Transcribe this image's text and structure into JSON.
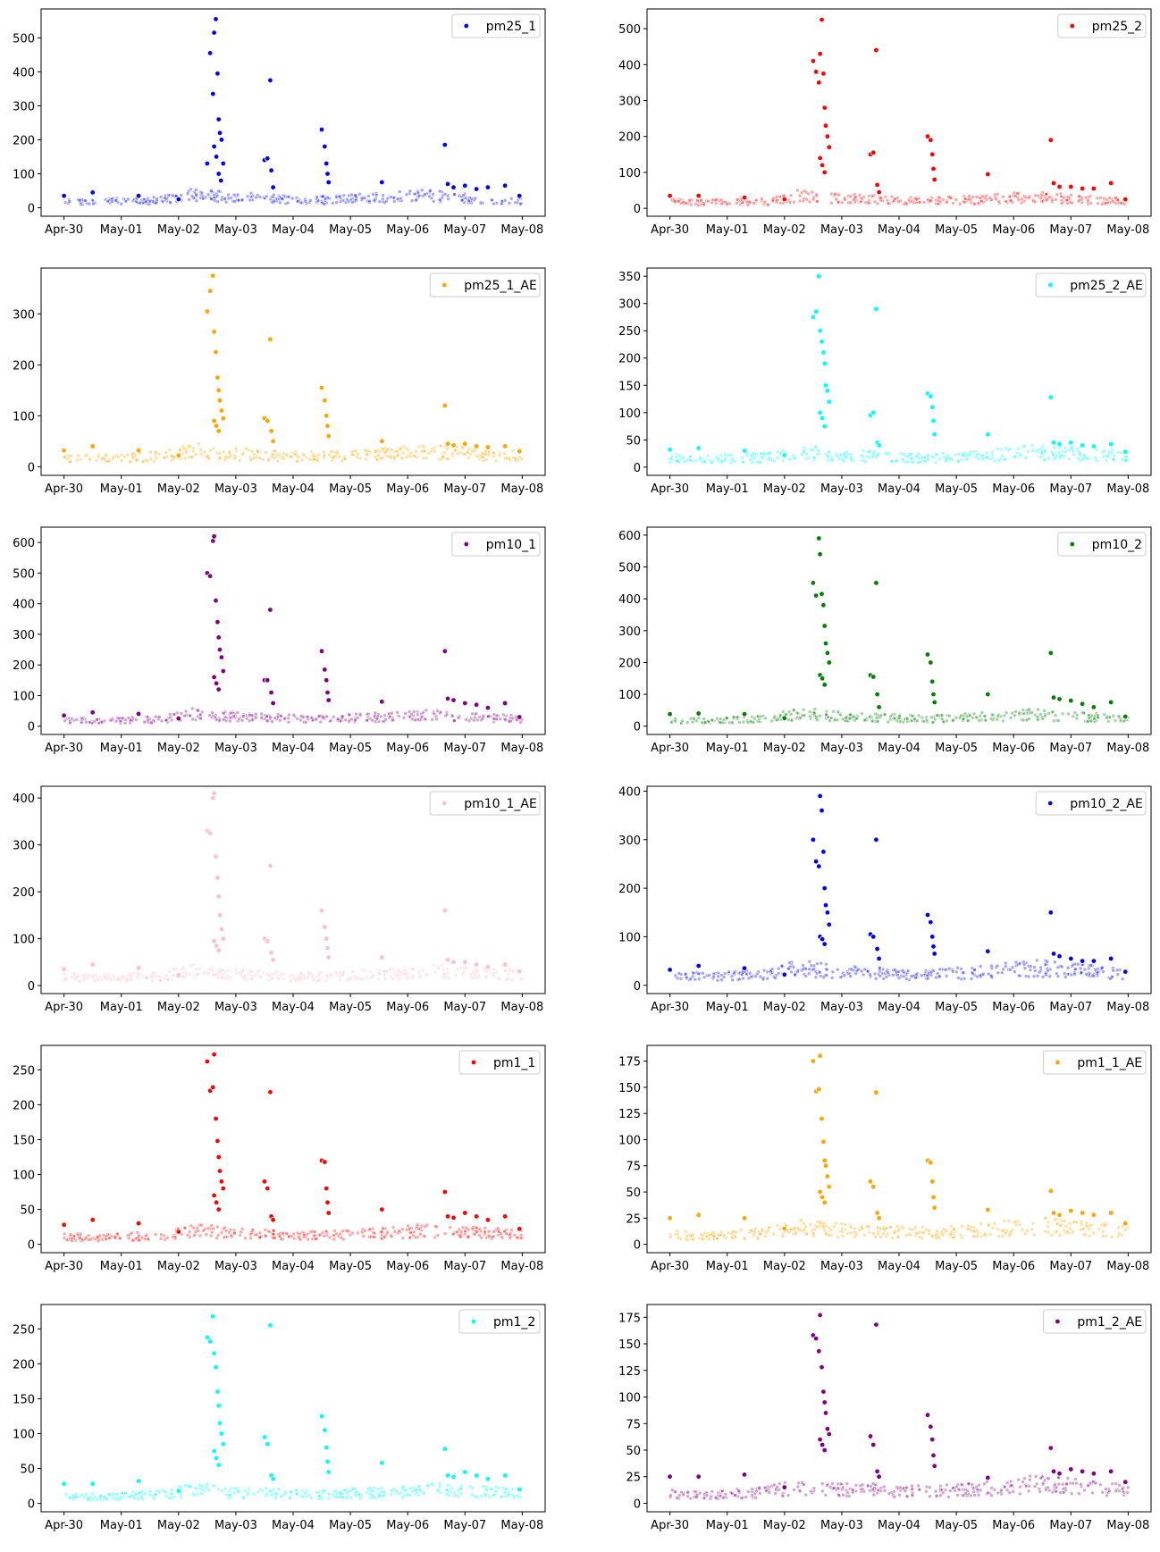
{
  "x_tick_labels": [
    "Apr-30",
    "May-01",
    "May-02",
    "May-03",
    "May-04",
    "May-05",
    "May-06",
    "May-07",
    "May-08"
  ],
  "chart_data": [
    {
      "type": "scatter",
      "legend": "pm25_1",
      "color": "#0000ff",
      "legend_position": "top-right",
      "xlim": [
        -0.4,
        8.4
      ],
      "ylim": [
        -25,
        585
      ],
      "yticks": [
        0,
        100,
        200,
        300,
        400,
        500
      ],
      "x": [
        0.0,
        0.5,
        1.3,
        2.0,
        2.5,
        2.55,
        2.6,
        2.62,
        2.65,
        2.68,
        2.7,
        2.72,
        2.75,
        2.78,
        2.62,
        2.66,
        2.7,
        2.74,
        3.5,
        3.55,
        3.6,
        3.62,
        3.65,
        4.5,
        4.55,
        4.58,
        4.6,
        4.62,
        5.55,
        6.65,
        6.7,
        6.8,
        7.0,
        7.2,
        7.4,
        7.7,
        7.95
      ],
      "y": [
        35,
        45,
        35,
        25,
        130,
        455,
        335,
        515,
        555,
        395,
        260,
        220,
        200,
        130,
        180,
        150,
        100,
        80,
        140,
        145,
        375,
        110,
        60,
        230,
        180,
        130,
        100,
        75,
        75,
        185,
        70,
        60,
        65,
        55,
        60,
        65,
        35
      ],
      "base": [
        20,
        20,
        22,
        25,
        45,
        35,
        30,
        25,
        25,
        30,
        35,
        40,
        32,
        25,
        22
      ]
    },
    {
      "type": "scatter",
      "legend": "pm25_2",
      "color": "#ff0000",
      "legend_position": "top-right",
      "xlim": [
        -0.4,
        8.4
      ],
      "ylim": [
        -22,
        555
      ],
      "yticks": [
        0,
        100,
        200,
        300,
        400,
        500
      ],
      "x": [
        0.0,
        0.5,
        1.3,
        2.0,
        2.5,
        2.55,
        2.6,
        2.62,
        2.65,
        2.68,
        2.7,
        2.72,
        2.75,
        2.78,
        2.62,
        2.66,
        2.7,
        3.5,
        3.55,
        3.6,
        3.62,
        3.65,
        4.5,
        4.55,
        4.58,
        4.6,
        4.62,
        5.55,
        6.65,
        6.7,
        6.8,
        7.0,
        7.2,
        7.4,
        7.7,
        7.95
      ],
      "y": [
        35,
        35,
        30,
        25,
        410,
        380,
        350,
        430,
        525,
        375,
        280,
        230,
        200,
        170,
        140,
        120,
        100,
        150,
        155,
        440,
        65,
        45,
        200,
        190,
        150,
        110,
        80,
        95,
        190,
        70,
        60,
        60,
        55,
        55,
        70,
        25
      ],
      "base": [
        20,
        18,
        20,
        22,
        40,
        30,
        28,
        25,
        22,
        25,
        30,
        35,
        30,
        25,
        22
      ]
    },
    {
      "type": "scatter",
      "legend": "pm25_1_AE",
      "color": "#ffa500",
      "legend_position": "top-right",
      "xlim": [
        -0.4,
        8.4
      ],
      "ylim": [
        -17,
        390
      ],
      "yticks": [
        0,
        100,
        200,
        300
      ],
      "x": [
        0.0,
        0.5,
        1.3,
        2.0,
        2.5,
        2.55,
        2.6,
        2.62,
        2.65,
        2.68,
        2.7,
        2.72,
        2.75,
        2.78,
        2.62,
        2.66,
        2.7,
        3.5,
        3.55,
        3.6,
        3.62,
        3.65,
        4.5,
        4.55,
        4.58,
        4.6,
        4.62,
        5.55,
        6.65,
        6.7,
        6.8,
        7.0,
        7.2,
        7.4,
        7.7,
        7.95
      ],
      "y": [
        32,
        40,
        32,
        22,
        305,
        345,
        375,
        265,
        225,
        175,
        150,
        130,
        110,
        95,
        90,
        80,
        70,
        95,
        90,
        250,
        70,
        50,
        155,
        130,
        100,
        80,
        60,
        50,
        120,
        45,
        42,
        45,
        40,
        38,
        40,
        30
      ],
      "base": [
        18,
        18,
        20,
        22,
        35,
        28,
        25,
        22,
        22,
        25,
        28,
        32,
        30,
        25,
        22
      ]
    },
    {
      "type": "scatter",
      "legend": "pm25_2_AE",
      "color": "#00ffff",
      "legend_position": "top-right",
      "xlim": [
        -0.4,
        8.4
      ],
      "ylim": [
        -15,
        365
      ],
      "yticks": [
        0,
        50,
        100,
        150,
        200,
        250,
        300,
        350
      ],
      "x": [
        0.0,
        0.5,
        1.3,
        2.0,
        2.5,
        2.55,
        2.6,
        2.62,
        2.65,
        2.68,
        2.7,
        2.72,
        2.75,
        2.78,
        2.62,
        2.66,
        2.7,
        3.5,
        3.55,
        3.6,
        3.62,
        3.65,
        4.5,
        4.55,
        4.58,
        4.6,
        4.62,
        5.55,
        6.65,
        6.7,
        6.8,
        7.0,
        7.2,
        7.4,
        7.7,
        7.95
      ],
      "y": [
        32,
        35,
        30,
        22,
        275,
        285,
        350,
        250,
        230,
        210,
        190,
        150,
        140,
        120,
        100,
        90,
        75,
        95,
        100,
        290,
        45,
        40,
        135,
        130,
        110,
        85,
        60,
        60,
        128,
        45,
        42,
        45,
        40,
        38,
        42,
        28
      ],
      "base": [
        18,
        16,
        18,
        20,
        32,
        25,
        22,
        20,
        18,
        20,
        25,
        30,
        28,
        25,
        22
      ]
    },
    {
      "type": "scatter",
      "legend": "pm10_1",
      "color": "#800080",
      "legend_position": "top-right",
      "xlim": [
        -0.4,
        8.4
      ],
      "ylim": [
        -27,
        650
      ],
      "yticks": [
        0,
        100,
        200,
        300,
        400,
        500,
        600
      ],
      "x": [
        0.0,
        0.5,
        1.3,
        2.0,
        2.5,
        2.55,
        2.6,
        2.62,
        2.65,
        2.68,
        2.7,
        2.72,
        2.75,
        2.78,
        2.62,
        2.66,
        2.7,
        3.5,
        3.55,
        3.6,
        3.62,
        3.65,
        4.5,
        4.55,
        4.58,
        4.6,
        4.62,
        5.55,
        6.65,
        6.7,
        6.8,
        7.0,
        7.2,
        7.4,
        7.7,
        7.95
      ],
      "y": [
        35,
        45,
        40,
        25,
        500,
        490,
        605,
        620,
        410,
        340,
        290,
        250,
        225,
        180,
        160,
        140,
        120,
        150,
        150,
        380,
        110,
        75,
        245,
        185,
        150,
        110,
        85,
        80,
        245,
        90,
        85,
        75,
        70,
        60,
        75,
        30
      ],
      "base": [
        22,
        20,
        22,
        25,
        45,
        35,
        30,
        28,
        25,
        30,
        35,
        40,
        35,
        30,
        25
      ]
    },
    {
      "type": "scatter",
      "legend": "pm10_2",
      "color": "#008000",
      "legend_position": "top-right",
      "xlim": [
        -0.4,
        8.4
      ],
      "ylim": [
        -26,
        625
      ],
      "yticks": [
        0,
        100,
        200,
        300,
        400,
        500,
        600
      ],
      "x": [
        0.0,
        0.5,
        1.3,
        2.0,
        2.5,
        2.55,
        2.6,
        2.62,
        2.65,
        2.68,
        2.7,
        2.72,
        2.75,
        2.78,
        2.62,
        2.66,
        2.7,
        3.5,
        3.55,
        3.6,
        3.62,
        3.65,
        4.5,
        4.55,
        4.58,
        4.6,
        4.62,
        5.55,
        6.65,
        6.7,
        6.8,
        7.0,
        7.2,
        7.4,
        7.7,
        7.95
      ],
      "y": [
        38,
        40,
        38,
        25,
        450,
        410,
        590,
        540,
        415,
        380,
        315,
        260,
        230,
        200,
        160,
        150,
        130,
        160,
        155,
        450,
        100,
        60,
        225,
        200,
        140,
        100,
        75,
        100,
        230,
        90,
        85,
        80,
        70,
        60,
        75,
        30
      ],
      "base": [
        22,
        20,
        22,
        25,
        45,
        35,
        30,
        28,
        25,
        30,
        35,
        40,
        35,
        30,
        25
      ]
    },
    {
      "type": "scatter",
      "legend": "pm10_1_AE",
      "color": "#ffc0cb",
      "legend_position": "top-right",
      "xlim": [
        -0.4,
        8.4
      ],
      "ylim": [
        -17,
        425
      ],
      "yticks": [
        0,
        100,
        200,
        300,
        400
      ],
      "x": [
        0.0,
        0.5,
        1.3,
        2.0,
        2.5,
        2.55,
        2.6,
        2.62,
        2.65,
        2.68,
        2.7,
        2.72,
        2.75,
        2.78,
        2.62,
        2.66,
        2.7,
        3.5,
        3.55,
        3.6,
        3.62,
        3.65,
        4.5,
        4.55,
        4.58,
        4.6,
        4.62,
        5.55,
        6.65,
        6.7,
        6.8,
        7.0,
        7.2,
        7.4,
        7.7,
        7.95
      ],
      "y": [
        35,
        45,
        38,
        22,
        330,
        325,
        400,
        410,
        275,
        230,
        190,
        150,
        120,
        100,
        95,
        85,
        75,
        100,
        95,
        255,
        70,
        55,
        160,
        125,
        100,
        80,
        60,
        60,
        160,
        55,
        50,
        50,
        45,
        40,
        45,
        30
      ],
      "base": [
        20,
        18,
        20,
        22,
        35,
        28,
        25,
        22,
        22,
        25,
        28,
        35,
        32,
        28,
        25
      ]
    },
    {
      "type": "scatter",
      "legend": "pm10_2_AE",
      "color": "#0000ff",
      "legend_position": "top-right",
      "xlim": [
        -0.4,
        8.4
      ],
      "ylim": [
        -17,
        410
      ],
      "yticks": [
        0,
        100,
        200,
        300,
        400
      ],
      "x": [
        0.0,
        0.5,
        1.3,
        2.0,
        2.5,
        2.55,
        2.6,
        2.62,
        2.65,
        2.68,
        2.7,
        2.72,
        2.75,
        2.78,
        2.62,
        2.66,
        2.7,
        3.5,
        3.55,
        3.6,
        3.62,
        3.65,
        4.5,
        4.55,
        4.58,
        4.6,
        4.62,
        5.55,
        6.65,
        6.7,
        6.8,
        7.0,
        7.2,
        7.4,
        7.7,
        7.95
      ],
      "y": [
        32,
        40,
        35,
        22,
        300,
        255,
        245,
        390,
        360,
        275,
        200,
        165,
        150,
        125,
        100,
        95,
        85,
        105,
        100,
        300,
        75,
        55,
        145,
        130,
        100,
        80,
        65,
        70,
        150,
        65,
        60,
        55,
        50,
        50,
        55,
        28
      ],
      "base": [
        22,
        20,
        22,
        25,
        40,
        32,
        28,
        25,
        25,
        28,
        32,
        40,
        35,
        30,
        25
      ]
    },
    {
      "type": "scatter",
      "legend": "pm1_1",
      "color": "#ff0000",
      "legend_position": "top-right",
      "xlim": [
        -0.4,
        8.4
      ],
      "ylim": [
        -12,
        285
      ],
      "yticks": [
        0,
        50,
        100,
        150,
        200,
        250
      ],
      "x": [
        0.0,
        0.5,
        1.3,
        2.0,
        2.5,
        2.55,
        2.6,
        2.62,
        2.65,
        2.68,
        2.7,
        2.72,
        2.75,
        2.78,
        2.62,
        2.66,
        2.7,
        3.5,
        3.55,
        3.6,
        3.62,
        3.65,
        4.5,
        4.55,
        4.58,
        4.6,
        4.62,
        5.55,
        6.65,
        6.7,
        6.8,
        7.0,
        7.2,
        7.4,
        7.7,
        7.95
      ],
      "y": [
        28,
        35,
        30,
        18,
        262,
        220,
        225,
        272,
        180,
        148,
        125,
        105,
        90,
        80,
        70,
        60,
        50,
        90,
        80,
        218,
        40,
        35,
        120,
        118,
        80,
        60,
        45,
        50,
        75,
        40,
        38,
        45,
        40,
        35,
        40,
        22
      ],
      "base": [
        12,
        10,
        12,
        14,
        22,
        18,
        16,
        15,
        14,
        16,
        18,
        22,
        20,
        18,
        15
      ]
    },
    {
      "type": "scatter",
      "legend": "pm1_1_AE",
      "color": "#ffa500",
      "legend_position": "top-right",
      "xlim": [
        -0.4,
        8.4
      ],
      "ylim": [
        -8,
        190
      ],
      "yticks": [
        0,
        25,
        50,
        75,
        100,
        125,
        150,
        175
      ],
      "x": [
        0.0,
        0.5,
        1.3,
        2.0,
        2.5,
        2.55,
        2.6,
        2.62,
        2.65,
        2.68,
        2.7,
        2.72,
        2.75,
        2.78,
        2.62,
        2.66,
        2.7,
        3.5,
        3.55,
        3.6,
        3.62,
        3.65,
        4.5,
        4.55,
        4.58,
        4.6,
        4.62,
        5.55,
        6.65,
        6.7,
        6.8,
        7.0,
        7.2,
        7.4,
        7.7,
        7.95
      ],
      "y": [
        25,
        28,
        25,
        15,
        175,
        146,
        148,
        180,
        120,
        98,
        80,
        75,
        65,
        55,
        50,
        45,
        40,
        60,
        55,
        145,
        30,
        25,
        80,
        78,
        60,
        45,
        35,
        33,
        51,
        30,
        28,
        32,
        30,
        28,
        30,
        20
      ],
      "base": [
        10,
        8,
        10,
        12,
        18,
        15,
        14,
        13,
        12,
        14,
        16,
        20,
        18,
        16,
        14
      ]
    },
    {
      "type": "scatter",
      "legend": "pm1_2",
      "color": "#00ffff",
      "legend_position": "top-right",
      "xlim": [
        -0.4,
        8.4
      ],
      "ylim": [
        -12,
        285
      ],
      "yticks": [
        0,
        50,
        100,
        150,
        200,
        250
      ],
      "x": [
        0.0,
        0.5,
        1.3,
        2.0,
        2.5,
        2.55,
        2.6,
        2.62,
        2.65,
        2.68,
        2.7,
        2.72,
        2.75,
        2.78,
        2.62,
        2.66,
        2.7,
        3.5,
        3.55,
        3.6,
        3.62,
        3.65,
        4.5,
        4.55,
        4.58,
        4.6,
        4.62,
        5.55,
        6.65,
        6.7,
        6.8,
        7.0,
        7.2,
        7.4,
        7.7,
        7.95
      ],
      "y": [
        28,
        28,
        32,
        18,
        238,
        232,
        268,
        215,
        195,
        160,
        140,
        115,
        100,
        85,
        75,
        65,
        55,
        95,
        85,
        255,
        40,
        35,
        125,
        105,
        80,
        60,
        45,
        58,
        78,
        40,
        38,
        45,
        40,
        35,
        40,
        20
      ],
      "base": [
        12,
        10,
        12,
        14,
        22,
        18,
        16,
        15,
        14,
        16,
        18,
        22,
        20,
        18,
        15
      ]
    },
    {
      "type": "scatter",
      "legend": "pm1_2_AE",
      "color": "#800080",
      "legend_position": "top-right",
      "xlim": [
        -0.4,
        8.4
      ],
      "ylim": [
        -8,
        187
      ],
      "yticks": [
        0,
        25,
        50,
        75,
        100,
        125,
        150,
        175
      ],
      "x": [
        0.0,
        0.5,
        1.3,
        2.0,
        2.5,
        2.55,
        2.6,
        2.62,
        2.65,
        2.68,
        2.7,
        2.72,
        2.75,
        2.78,
        2.62,
        2.66,
        2.7,
        3.5,
        3.55,
        3.6,
        3.62,
        3.65,
        4.5,
        4.55,
        4.58,
        4.6,
        4.62,
        5.55,
        6.65,
        6.7,
        6.8,
        7.0,
        7.2,
        7.4,
        7.7,
        7.95
      ],
      "y": [
        25,
        25,
        27,
        15,
        158,
        155,
        143,
        177,
        128,
        105,
        95,
        85,
        70,
        65,
        60,
        55,
        50,
        63,
        55,
        168,
        30,
        25,
        83,
        72,
        60,
        45,
        35,
        24,
        52,
        30,
        28,
        32,
        30,
        28,
        30,
        20
      ],
      "base": [
        10,
        8,
        10,
        12,
        18,
        15,
        14,
        13,
        12,
        14,
        16,
        20,
        18,
        16,
        14
      ]
    }
  ]
}
